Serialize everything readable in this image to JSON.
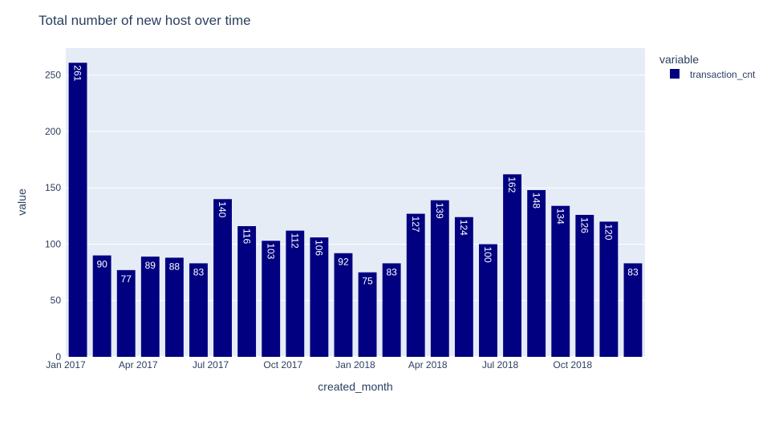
{
  "chart_data": {
    "type": "bar",
    "title": "Total number of new host over time",
    "xlabel": "created_month",
    "ylabel": "value",
    "categories": [
      "2017-01",
      "2017-02",
      "2017-03",
      "2017-04",
      "2017-05",
      "2017-06",
      "2017-07",
      "2017-08",
      "2017-09",
      "2017-10",
      "2017-11",
      "2017-12",
      "2018-01",
      "2018-02",
      "2018-03",
      "2018-04",
      "2018-05",
      "2018-06",
      "2018-07",
      "2018-08",
      "2018-09",
      "2018-10",
      "2018-11",
      "2018-12"
    ],
    "series": [
      {
        "name": "transaction_cnt",
        "color": "#000080",
        "values": [
          261,
          90,
          77,
          89,
          88,
          83,
          140,
          116,
          103,
          112,
          106,
          92,
          75,
          83,
          127,
          139,
          124,
          100,
          162,
          148,
          134,
          126,
          120,
          83
        ]
      }
    ],
    "ylim": [
      0,
      274
    ],
    "yticks": [
      0,
      50,
      100,
      150,
      200,
      250
    ],
    "xtick_labels": [
      {
        "category": "2017-01",
        "label": "Jan 2017"
      },
      {
        "category": "2017-04",
        "label": "Apr 2017"
      },
      {
        "category": "2017-07",
        "label": "Jul 2017"
      },
      {
        "category": "2017-10",
        "label": "Oct 2017"
      },
      {
        "category": "2018-01",
        "label": "Jan 2018"
      },
      {
        "category": "2018-04",
        "label": "Apr 2018"
      },
      {
        "category": "2018-07",
        "label": "Jul 2018"
      },
      {
        "category": "2018-10",
        "label": "Oct 2018"
      }
    ],
    "legend": {
      "title": "variable",
      "position": "top-right"
    },
    "grid": true,
    "plot_bgcolor": "#e5ecf6"
  }
}
